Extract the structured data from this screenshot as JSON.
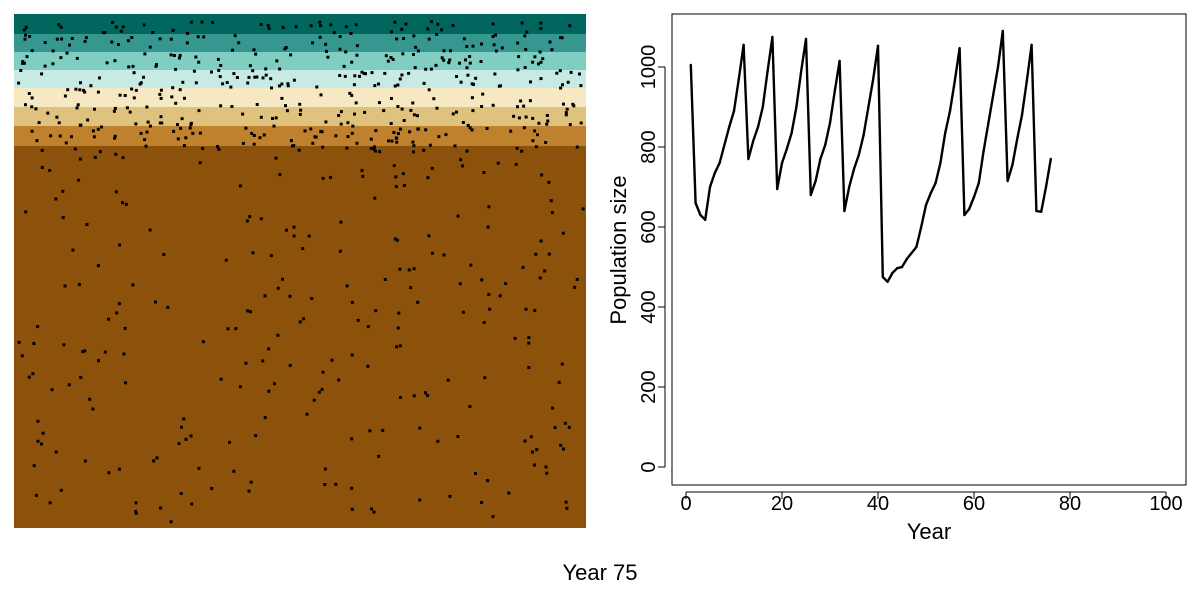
{
  "caption": "Year 75",
  "landscape": {
    "band_colors": [
      "#01665e",
      "#35978f",
      "#80cdc1",
      "#c7eae5",
      "#f6e8c3",
      "#dfc27d",
      "#bf812d",
      "#8c510a"
    ],
    "band_note_count": 8,
    "individual_color": "#000000"
  },
  "chart_data": {
    "type": "line",
    "title": "",
    "xlabel": "Year",
    "ylabel": "Population size",
    "xlim": [
      0,
      100
    ],
    "ylim": [
      0,
      1100
    ],
    "xticks": [
      0,
      20,
      40,
      60,
      80,
      100
    ],
    "yticks": [
      0,
      200,
      400,
      600,
      800,
      1000
    ],
    "grid": false,
    "line_color": "#000000",
    "series": [
      {
        "x": [
          1,
          2,
          3,
          4,
          5,
          6,
          7,
          8,
          9,
          10,
          11,
          12,
          13,
          14,
          15,
          16,
          17,
          18,
          19,
          20,
          21,
          22,
          23,
          24,
          25,
          26,
          27,
          28,
          29,
          30,
          31,
          32,
          33,
          34,
          35,
          36,
          37,
          38,
          39,
          40,
          41,
          42,
          43,
          44,
          45,
          46,
          47,
          48,
          49,
          50,
          51,
          52,
          53,
          54,
          55,
          56,
          57,
          58,
          59,
          60,
          61,
          62,
          63,
          64,
          65,
          66,
          67,
          68,
          69,
          70,
          71,
          72,
          73,
          74,
          75,
          76
        ],
        "values": [
          1005,
          660,
          630,
          618,
          700,
          735,
          760,
          805,
          850,
          890,
          970,
          1055,
          770,
          815,
          850,
          900,
          990,
          1075,
          695,
          760,
          795,
          835,
          900,
          990,
          1070,
          680,
          715,
          770,
          805,
          860,
          940,
          1015,
          640,
          700,
          745,
          780,
          830,
          900,
          970,
          1053,
          475,
          463,
          485,
          497,
          500,
          520,
          535,
          550,
          600,
          655,
          685,
          710,
          760,
          835,
          890,
          965,
          1047,
          630,
          645,
          675,
          710,
          790,
          860,
          930,
          1000,
          1090,
          715,
          755,
          820,
          880,
          965,
          1055,
          640,
          638,
          700,
          770
        ]
      }
    ]
  }
}
